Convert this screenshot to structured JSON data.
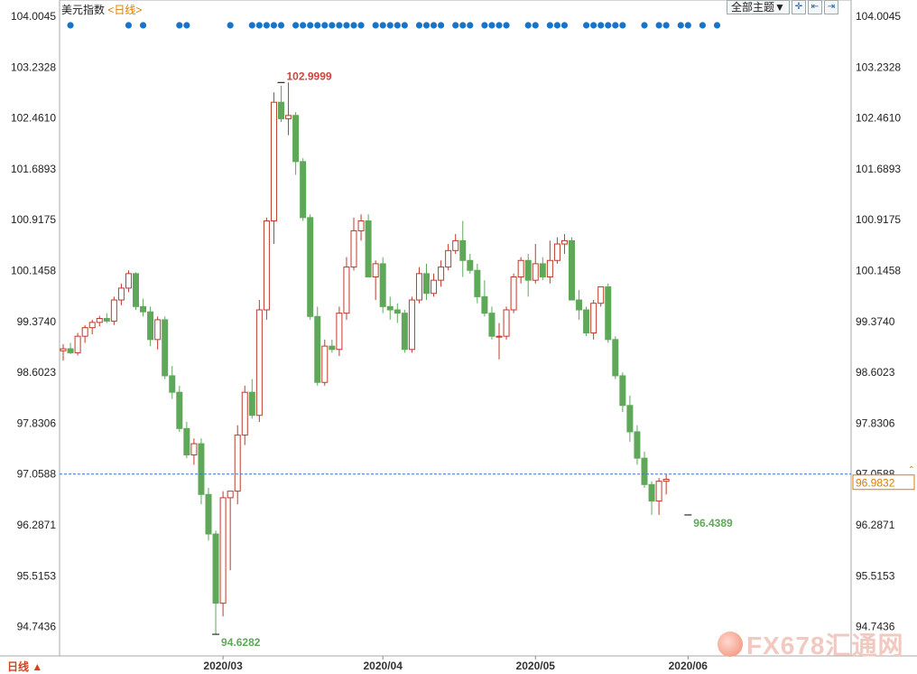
{
  "header": {
    "title": "美元指数",
    "period_label": "<日线>",
    "theme_select": "全部主题▼"
  },
  "footer": {
    "period_tab": "日线"
  },
  "watermark": {
    "text": "FX678汇通网"
  },
  "colors": {
    "up": "#c0392b",
    "down": "#5fa85a",
    "dot": "#1874c9",
    "current": "#e07b00",
    "grid_dash": "#3a73c8"
  },
  "chart_data": {
    "type": "candlestick",
    "y_ticks": [
      "104.0045",
      "103.2328",
      "102.4610",
      "101.6893",
      "100.9175",
      "100.1458",
      "99.3740",
      "98.6023",
      "97.8306",
      "97.0588",
      "96.2871",
      "95.5153",
      "94.7436"
    ],
    "ylim": [
      94.3,
      104.0045
    ],
    "x_labels": [
      {
        "label": "2020/03",
        "index": 22
      },
      {
        "label": "2020/04",
        "index": 44
      },
      {
        "label": "2020/05",
        "index": 65
      },
      {
        "label": "2020/06",
        "index": 86
      }
    ],
    "annotations": [
      {
        "label": "102.9999",
        "index": 30,
        "value": 102.9999,
        "kind": "high"
      },
      {
        "label": "94.6282",
        "index": 21,
        "value": 94.6282,
        "kind": "low"
      },
      {
        "label": "96.4389",
        "index": 86,
        "value": 96.4389,
        "kind": "low"
      }
    ],
    "current_value": "96.9832",
    "current_level": 97.0588,
    "event_markers": [
      1,
      9,
      11,
      16,
      17,
      23,
      26,
      27,
      28,
      29,
      30,
      32,
      33,
      34,
      35,
      36,
      37,
      38,
      39,
      40,
      41,
      43,
      44,
      45,
      46,
      47,
      49,
      50,
      51,
      52,
      54,
      55,
      56,
      58,
      59,
      60,
      61,
      64,
      65,
      67,
      68,
      69,
      72,
      73,
      74,
      75,
      76,
      77,
      80,
      82,
      83,
      85,
      86,
      88,
      90
    ],
    "candles": [
      [
        98.93,
        99.03,
        98.78,
        98.96
      ],
      [
        98.96,
        99.05,
        98.88,
        98.9
      ],
      [
        98.9,
        99.2,
        98.86,
        99.15
      ],
      [
        99.15,
        99.32,
        99.05,
        99.28
      ],
      [
        99.28,
        99.4,
        99.18,
        99.36
      ],
      [
        99.36,
        99.46,
        99.3,
        99.42
      ],
      [
        99.42,
        99.5,
        99.35,
        99.38
      ],
      [
        99.38,
        99.75,
        99.32,
        99.7
      ],
      [
        99.7,
        99.95,
        99.62,
        99.88
      ],
      [
        99.88,
        100.15,
        99.82,
        100.1
      ],
      [
        100.1,
        100.12,
        99.55,
        99.6
      ],
      [
        99.6,
        99.72,
        99.45,
        99.52
      ],
      [
        99.52,
        99.6,
        99.0,
        99.1
      ],
      [
        99.1,
        99.45,
        98.95,
        99.4
      ],
      [
        99.4,
        99.45,
        98.5,
        98.55
      ],
      [
        98.55,
        98.7,
        98.2,
        98.3
      ],
      [
        98.3,
        98.4,
        97.7,
        97.75
      ],
      [
        97.75,
        97.85,
        97.3,
        97.35
      ],
      [
        97.35,
        97.6,
        97.2,
        97.52
      ],
      [
        97.52,
        97.6,
        96.6,
        96.75
      ],
      [
        96.75,
        96.85,
        96.05,
        96.15
      ],
      [
        96.15,
        96.2,
        94.63,
        95.1
      ],
      [
        95.1,
        96.8,
        94.9,
        96.7
      ],
      [
        96.7,
        96.8,
        95.6,
        96.8
      ],
      [
        96.8,
        97.8,
        96.6,
        97.65
      ],
      [
        97.65,
        98.4,
        97.5,
        98.3
      ],
      [
        98.3,
        98.5,
        97.9,
        97.95
      ],
      [
        97.95,
        99.7,
        97.85,
        99.55
      ],
      [
        99.55,
        100.95,
        99.4,
        100.9
      ],
      [
        100.9,
        102.85,
        100.55,
        102.7
      ],
      [
        102.7,
        102.95,
        102.4,
        102.45
      ],
      [
        102.45,
        103.0,
        102.2,
        102.5
      ],
      [
        102.5,
        102.55,
        101.6,
        101.8
      ],
      [
        101.8,
        101.85,
        100.9,
        100.95
      ],
      [
        100.95,
        101.0,
        99.4,
        99.45
      ],
      [
        99.45,
        99.6,
        98.4,
        98.45
      ],
      [
        98.45,
        99.1,
        98.4,
        99.0
      ],
      [
        99.0,
        99.1,
        98.9,
        98.95
      ],
      [
        98.95,
        99.6,
        98.85,
        99.5
      ],
      [
        99.5,
        100.35,
        99.4,
        100.2
      ],
      [
        100.2,
        100.95,
        100.15,
        100.75
      ],
      [
        100.75,
        101.0,
        100.6,
        100.9
      ],
      [
        100.9,
        101.0,
        100.05,
        100.05
      ],
      [
        100.05,
        100.3,
        99.7,
        100.25
      ],
      [
        100.25,
        100.35,
        99.5,
        99.6
      ],
      [
        99.6,
        99.75,
        99.4,
        99.55
      ],
      [
        99.55,
        99.65,
        99.35,
        99.5
      ],
      [
        99.5,
        99.55,
        98.9,
        98.95
      ],
      [
        98.95,
        99.75,
        98.9,
        99.7
      ],
      [
        99.7,
        100.2,
        99.65,
        100.1
      ],
      [
        100.1,
        100.25,
        99.7,
        99.8
      ],
      [
        99.8,
        100.1,
        99.75,
        100.0
      ],
      [
        100.0,
        100.3,
        99.9,
        100.2
      ],
      [
        100.2,
        100.55,
        100.15,
        100.45
      ],
      [
        100.45,
        100.7,
        100.4,
        100.6
      ],
      [
        100.6,
        100.9,
        100.05,
        100.3
      ],
      [
        100.3,
        100.4,
        100.1,
        100.15
      ],
      [
        100.15,
        100.25,
        99.65,
        99.75
      ],
      [
        99.75,
        100.0,
        99.45,
        99.5
      ],
      [
        99.5,
        99.6,
        99.1,
        99.15
      ],
      [
        99.15,
        99.35,
        98.8,
        99.15
      ],
      [
        99.15,
        99.6,
        99.1,
        99.55
      ],
      [
        99.55,
        100.1,
        99.5,
        100.05
      ],
      [
        100.05,
        100.35,
        99.95,
        100.3
      ],
      [
        100.3,
        100.4,
        99.75,
        100.0
      ],
      [
        100.0,
        100.55,
        99.95,
        100.25
      ],
      [
        100.25,
        100.35,
        100.0,
        100.05
      ],
      [
        100.05,
        100.6,
        99.95,
        100.3
      ],
      [
        100.3,
        100.65,
        100.25,
        100.55
      ],
      [
        100.55,
        100.7,
        100.4,
        100.6
      ],
      [
        100.6,
        100.65,
        99.7,
        99.7
      ],
      [
        99.7,
        99.85,
        99.4,
        99.55
      ],
      [
        99.55,
        99.6,
        99.15,
        99.2
      ],
      [
        99.2,
        99.7,
        99.1,
        99.65
      ],
      [
        99.65,
        99.9,
        99.6,
        99.9
      ],
      [
        99.9,
        99.95,
        99.05,
        99.1
      ],
      [
        99.1,
        99.15,
        98.5,
        98.55
      ],
      [
        98.55,
        98.6,
        98.0,
        98.1
      ],
      [
        98.1,
        98.25,
        97.55,
        97.7
      ],
      [
        97.7,
        97.8,
        97.2,
        97.3
      ],
      [
        97.3,
        97.4,
        96.85,
        96.9
      ],
      [
        96.9,
        96.95,
        96.44,
        96.65
      ],
      [
        96.65,
        97.0,
        96.44,
        96.95
      ],
      [
        96.95,
        97.05,
        96.75,
        96.98
      ]
    ]
  }
}
